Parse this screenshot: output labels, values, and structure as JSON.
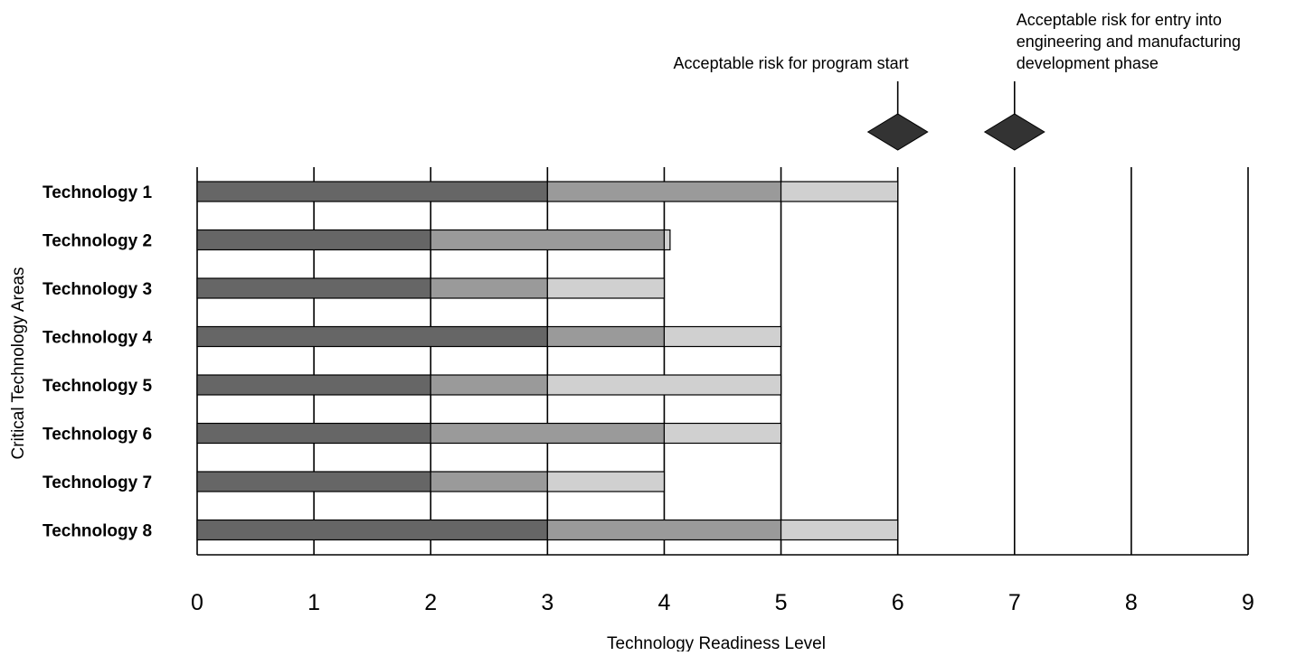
{
  "chart_data": {
    "type": "bar",
    "stacked": true,
    "orientation": "horizontal",
    "xlabel": "Technology Readiness Level",
    "ylabel": "Critical Technology Areas",
    "xlim": [
      0,
      9
    ],
    "x_ticks": [
      "0",
      "1",
      "2",
      "3",
      "4",
      "5",
      "6",
      "7",
      "8",
      "9"
    ],
    "grid": true,
    "categories": [
      "Technology 1",
      "Technology 2",
      "Technology 3",
      "Technology 4",
      "Technology 5",
      "Technology 6",
      "Technology 7",
      "Technology 8"
    ],
    "series": [
      {
        "color": "#666666",
        "values": [
          3,
          2,
          2,
          3,
          2,
          2,
          2,
          3
        ]
      },
      {
        "color": "#9a9a9a",
        "values": [
          2,
          2,
          1,
          1,
          1,
          2,
          1,
          2
        ]
      },
      {
        "color": "#d0d0d0",
        "values": [
          1,
          0.05,
          1,
          1,
          2,
          1,
          1,
          1
        ]
      }
    ],
    "annotations": [
      {
        "x": 6,
        "lines": [
          "Acceptable risk for program start"
        ],
        "marker": "diamond",
        "color": "#333333"
      },
      {
        "x": 7,
        "lines": [
          "Acceptable risk for entry into",
          "engineering and manufacturing",
          "development phase"
        ],
        "marker": "diamond",
        "color": "#333333"
      }
    ]
  }
}
